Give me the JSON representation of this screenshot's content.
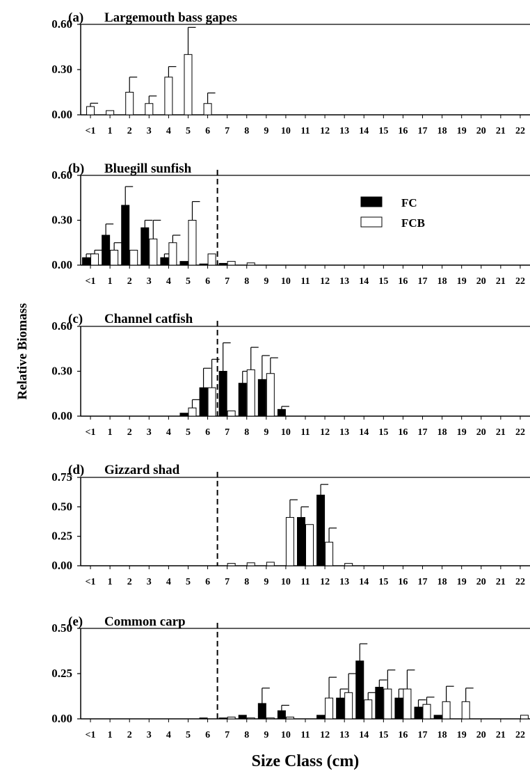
{
  "xlabel": "Size Class (cm)",
  "ylabel": "Relative Biomass",
  "categories": [
    "<1",
    "1",
    "2",
    "3",
    "4",
    "5",
    "6",
    "7",
    "8",
    "9",
    "10",
    "11",
    "12",
    "13",
    "14",
    "15",
    "16",
    "17",
    "18",
    "19",
    "20",
    "21",
    "22"
  ],
  "legend": {
    "fc_label": "FC",
    "fcb_label": "FCB",
    "placement": "panel-b-upper-right"
  },
  "colors": {
    "fc": "#000000",
    "fcb": "#ffffff",
    "outline": "#000000"
  },
  "chart_data": [
    {
      "type": "bar",
      "label": "(a)",
      "title": "Largemouth bass gapes",
      "ylim": [
        0,
        0.6
      ],
      "yticks": [
        "0.00",
        "0.30",
        "0.60"
      ],
      "dashed_line_after": null,
      "series": [
        {
          "name": "FCB",
          "values": [
            0.055,
            0.028,
            0.15,
            0.075,
            0.25,
            0.4,
            0.075,
            0,
            0,
            0,
            0,
            0,
            0,
            0,
            0,
            0,
            0,
            0,
            0,
            0,
            0,
            0,
            0
          ],
          "errors": [
            0.022,
            0,
            0.1,
            0.05,
            0.07,
            0.18,
            0.07,
            0,
            0,
            0,
            0,
            0,
            0,
            0,
            0,
            0,
            0,
            0,
            0,
            0,
            0,
            0,
            0
          ]
        }
      ]
    },
    {
      "type": "bar",
      "label": "(b)",
      "title": "Bluegill sunfish",
      "ylim": [
        0,
        0.6
      ],
      "yticks": [
        "0.00",
        "0.30",
        "0.60"
      ],
      "dashed_line_after": "6",
      "series": [
        {
          "name": "FC",
          "values": [
            0.05,
            0.2,
            0.4,
            0.25,
            0.05,
            0.025,
            0.008,
            0.012,
            0,
            0,
            0,
            0,
            0,
            0,
            0,
            0,
            0,
            0,
            0,
            0,
            0,
            0,
            0
          ],
          "errors": [
            0.025,
            0.075,
            0.125,
            0.05,
            0.025,
            0,
            0,
            0,
            0,
            0,
            0,
            0,
            0,
            0,
            0,
            0,
            0,
            0,
            0,
            0,
            0,
            0,
            0
          ]
        },
        {
          "name": "FCB",
          "values": [
            0.075,
            0.1,
            0.1,
            0.175,
            0.15,
            0.3,
            0.075,
            0.025,
            0.015,
            0,
            0,
            0,
            0,
            0,
            0,
            0,
            0,
            0,
            0,
            0,
            0,
            0,
            0
          ],
          "errors": [
            0.025,
            0.05,
            0,
            0.125,
            0.05,
            0.125,
            0,
            0,
            0,
            0,
            0,
            0,
            0,
            0,
            0,
            0,
            0,
            0,
            0,
            0,
            0,
            0,
            0
          ]
        }
      ]
    },
    {
      "type": "bar",
      "label": "(c)",
      "title": "Channel catfish",
      "ylim": [
        0,
        0.6
      ],
      "yticks": [
        "0.00",
        "0.30",
        "0.60"
      ],
      "dashed_line_after": "6",
      "series": [
        {
          "name": "FC",
          "values": [
            0,
            0,
            0,
            0,
            0,
            0.02,
            0.19,
            0.3,
            0.22,
            0.245,
            0.045,
            0,
            0,
            0,
            0,
            0,
            0,
            0,
            0,
            0,
            0,
            0,
            0
          ],
          "errors": [
            0,
            0,
            0,
            0,
            0,
            0,
            0.13,
            0.19,
            0.08,
            0.16,
            0.02,
            0,
            0,
            0,
            0,
            0,
            0,
            0,
            0,
            0,
            0,
            0,
            0
          ]
        },
        {
          "name": "FCB",
          "values": [
            0,
            0,
            0,
            0,
            0,
            0.055,
            0.19,
            0.035,
            0.31,
            0.285,
            0,
            0,
            0,
            0,
            0,
            0,
            0,
            0,
            0,
            0,
            0,
            0,
            0
          ],
          "errors": [
            0,
            0,
            0,
            0,
            0,
            0.055,
            0.19,
            0,
            0.15,
            0.105,
            0,
            0,
            0,
            0,
            0,
            0,
            0,
            0,
            0,
            0,
            0,
            0,
            0
          ]
        }
      ]
    },
    {
      "type": "bar",
      "label": "(d)",
      "title": "Gizzard shad",
      "ylim": [
        0,
        0.75
      ],
      "yticks": [
        "0.00",
        "0.25",
        "0.50",
        "0.75"
      ],
      "dashed_line_after": "6",
      "series": [
        {
          "name": "FC",
          "values": [
            0,
            0,
            0,
            0,
            0,
            0,
            0,
            0,
            0,
            0,
            0,
            0.41,
            0.6,
            0,
            0,
            0,
            0,
            0,
            0,
            0,
            0,
            0,
            0
          ],
          "errors": [
            0,
            0,
            0,
            0,
            0,
            0,
            0,
            0,
            0,
            0,
            0,
            0.09,
            0.09,
            0,
            0,
            0,
            0,
            0,
            0,
            0,
            0,
            0,
            0
          ]
        },
        {
          "name": "FCB",
          "values": [
            0,
            0,
            0,
            0,
            0,
            0,
            0,
            0.02,
            0.025,
            0.03,
            0.41,
            0.35,
            0.2,
            0.02,
            0,
            0,
            0,
            0,
            0,
            0,
            0,
            0,
            0
          ],
          "errors": [
            0,
            0,
            0,
            0,
            0,
            0,
            0,
            0,
            0,
            0,
            0.15,
            0,
            0.12,
            0,
            0,
            0,
            0,
            0,
            0,
            0,
            0,
            0,
            0
          ]
        }
      ]
    },
    {
      "type": "bar",
      "label": "(e)",
      "title": "Common carp",
      "ylim": [
        0,
        0.5
      ],
      "yticks": [
        "0.00",
        "0.25",
        "0.50"
      ],
      "dashed_line_after": "6",
      "series": [
        {
          "name": "FC",
          "values": [
            0,
            0,
            0,
            0,
            0,
            0,
            0.005,
            0.005,
            0.02,
            0.085,
            0.045,
            0,
            0.02,
            0.115,
            0.32,
            0.175,
            0.115,
            0.065,
            0.02,
            0,
            0,
            0,
            0
          ],
          "errors": [
            0,
            0,
            0,
            0,
            0,
            0,
            0,
            0,
            0,
            0.085,
            0.03,
            0,
            0,
            0.05,
            0.095,
            0.04,
            0.05,
            0.04,
            0,
            0,
            0,
            0,
            0
          ]
        },
        {
          "name": "FCB",
          "values": [
            0,
            0,
            0,
            0,
            0,
            0,
            0,
            0.01,
            0.005,
            0.005,
            0.01,
            0,
            0.115,
            0.145,
            0.105,
            0.165,
            0.165,
            0.08,
            0.095,
            0.095,
            0,
            0,
            0.02
          ],
          "errors": [
            0,
            0,
            0,
            0,
            0,
            0,
            0,
            0,
            0,
            0,
            0,
            0,
            0.115,
            0.105,
            0.04,
            0.105,
            0.105,
            0.04,
            0.085,
            0.075,
            0,
            0,
            0
          ]
        }
      ]
    }
  ]
}
